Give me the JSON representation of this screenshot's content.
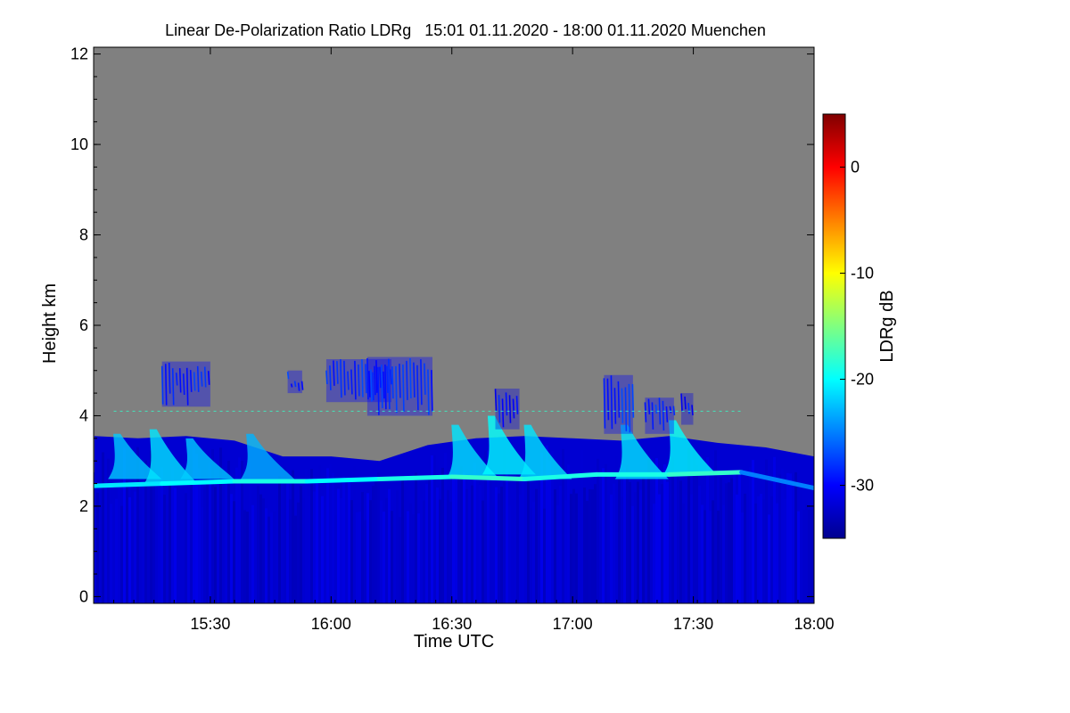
{
  "chart_data": {
    "type": "heatmap",
    "title": "Linear De-Polarization Ratio LDRg   15:01 01.11.2020 - 18:00 01.11.2020 Muenchen",
    "xlabel": "Time UTC",
    "ylabel": "Height km",
    "xlim_hours": [
      15.0167,
      18.0
    ],
    "ylim_km": [
      -0.15,
      12.15
    ],
    "x_ticks": [
      {
        "value": 15.5,
        "label": "15:30"
      },
      {
        "value": 16.0,
        "label": "16:00"
      },
      {
        "value": 16.5,
        "label": "16:30"
      },
      {
        "value": 17.0,
        "label": "17:00"
      },
      {
        "value": 17.5,
        "label": "17:30"
      },
      {
        "value": 18.0,
        "label": "18:00"
      }
    ],
    "y_ticks": [
      {
        "value": 0,
        "label": "0"
      },
      {
        "value": 2,
        "label": "2"
      },
      {
        "value": 4,
        "label": "4"
      },
      {
        "value": 6,
        "label": "6"
      },
      {
        "value": 8,
        "label": "8"
      },
      {
        "value": 10,
        "label": "10"
      },
      {
        "value": 12,
        "label": "12"
      }
    ],
    "colorbar": {
      "label": "LDRg dB",
      "range": [
        -35,
        5
      ],
      "ticks": [
        {
          "value": 0,
          "label": "0"
        },
        {
          "value": -10,
          "label": "-10"
        },
        {
          "value": -20,
          "label": "-20"
        },
        {
          "value": -30,
          "label": "-30"
        }
      ],
      "colors": [
        "#00008f",
        "#0000ff",
        "#0080ff",
        "#00ffff",
        "#80ff80",
        "#ffff00",
        "#ff8000",
        "#ff0000",
        "#800000"
      ]
    },
    "no_signal_color": "#808080",
    "background_ldr_db": -32,
    "base_layer": [
      {
        "t": 15.02,
        "top": 3.55,
        "ldr": -31
      },
      {
        "t": 15.2,
        "top": 3.5,
        "ldr": -31
      },
      {
        "t": 15.4,
        "top": 3.55,
        "ldr": -31
      },
      {
        "t": 15.6,
        "top": 3.45,
        "ldr": -31
      },
      {
        "t": 15.8,
        "top": 3.1,
        "ldr": -31
      },
      {
        "t": 16.0,
        "top": 3.1,
        "ldr": -31
      },
      {
        "t": 16.2,
        "top": 3.0,
        "ldr": -31
      },
      {
        "t": 16.4,
        "top": 3.35,
        "ldr": -31
      },
      {
        "t": 16.6,
        "top": 3.5,
        "ldr": -31
      },
      {
        "t": 16.8,
        "top": 3.55,
        "ldr": -31
      },
      {
        "t": 17.0,
        "top": 3.5,
        "ldr": -31
      },
      {
        "t": 17.2,
        "top": 3.45,
        "ldr": -31
      },
      {
        "t": 17.4,
        "top": 3.55,
        "ldr": -31
      },
      {
        "t": 17.6,
        "top": 3.4,
        "ldr": -31
      },
      {
        "t": 17.8,
        "top": 3.3,
        "ldr": -31
      },
      {
        "t": 18.0,
        "top": 3.1,
        "ldr": -31
      }
    ],
    "melting_layer": [
      {
        "t": 15.02,
        "h": 2.45,
        "ldr": -21
      },
      {
        "t": 15.3,
        "h": 2.5,
        "ldr": -20
      },
      {
        "t": 15.6,
        "h": 2.55,
        "ldr": -19
      },
      {
        "t": 15.9,
        "h": 2.55,
        "ldr": -20
      },
      {
        "t": 16.2,
        "h": 2.6,
        "ldr": -19
      },
      {
        "t": 16.5,
        "h": 2.65,
        "ldr": -18
      },
      {
        "t": 16.8,
        "h": 2.6,
        "ldr": -19
      },
      {
        "t": 17.1,
        "h": 2.7,
        "ldr": -19
      },
      {
        "t": 17.4,
        "h": 2.7,
        "ldr": -18
      },
      {
        "t": 17.7,
        "h": 2.75,
        "ldr": -25
      },
      {
        "t": 18.0,
        "h": 2.4,
        "ldr": -27
      }
    ],
    "fall_streaks": [
      {
        "t": 15.15,
        "base": 2.6,
        "top": 3.6,
        "ldr": -22
      },
      {
        "t": 15.3,
        "base": 2.5,
        "top": 3.7,
        "ldr": -21
      },
      {
        "t": 15.45,
        "base": 2.6,
        "top": 3.5,
        "ldr": -22
      },
      {
        "t": 15.7,
        "base": 2.6,
        "top": 3.6,
        "ldr": -23
      },
      {
        "t": 16.55,
        "base": 2.6,
        "top": 3.8,
        "ldr": -21
      },
      {
        "t": 16.7,
        "base": 2.7,
        "top": 4.0,
        "ldr": -20
      },
      {
        "t": 16.85,
        "base": 2.6,
        "top": 3.8,
        "ldr": -21
      },
      {
        "t": 17.25,
        "base": 2.6,
        "top": 3.8,
        "ldr": -21
      },
      {
        "t": 17.45,
        "base": 2.7,
        "top": 3.9,
        "ldr": -20
      }
    ],
    "upper_cirrus": [
      {
        "t0": 15.3,
        "t1": 15.5,
        "base": 4.2,
        "top": 5.2,
        "ldr": -30
      },
      {
        "t0": 15.82,
        "t1": 15.88,
        "base": 4.5,
        "top": 5.0,
        "ldr": -30
      },
      {
        "t0": 15.98,
        "t1": 16.25,
        "base": 4.3,
        "top": 5.25,
        "ldr": -30
      },
      {
        "t0": 16.15,
        "t1": 16.42,
        "base": 4.0,
        "top": 5.3,
        "ldr": -30
      },
      {
        "t0": 16.68,
        "t1": 16.78,
        "base": 3.7,
        "top": 4.6,
        "ldr": -31
      },
      {
        "t0": 17.13,
        "t1": 17.25,
        "base": 3.6,
        "top": 4.9,
        "ldr": -30
      },
      {
        "t0": 17.3,
        "t1": 17.42,
        "base": 3.6,
        "top": 4.4,
        "ldr": -30
      },
      {
        "t0": 17.45,
        "t1": 17.5,
        "base": 3.8,
        "top": 4.5,
        "ldr": -31
      }
    ],
    "echo_top_line": {
      "h": 4.1,
      "ldr": -18
    }
  }
}
